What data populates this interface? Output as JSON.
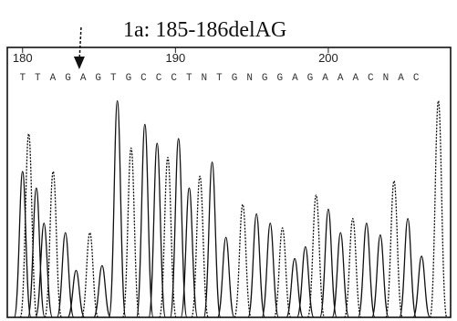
{
  "chart_data": {
    "type": "line",
    "title": "1a: 185-186delAG",
    "x_axis": {
      "ticks": [
        {
          "value": 180,
          "label": "180"
        },
        {
          "value": 190,
          "label": "190"
        },
        {
          "value": 200,
          "label": "200"
        }
      ],
      "range": [
        179,
        208
      ]
    },
    "mutation_marker": {
      "position": 185.5
    },
    "base_calls": [
      "T",
      "T",
      "A",
      "G",
      "A",
      "G",
      "T",
      "G",
      "C",
      "C",
      "C",
      "T",
      "N",
      "T",
      "G",
      "N",
      "G",
      "G",
      "A",
      "G",
      "A",
      "A",
      "A",
      "C",
      "N",
      "A",
      "C"
    ],
    "base_calls_start": 180,
    "peaks": [
      {
        "x": 180.0,
        "h": 0.62
      },
      {
        "x": 180.4,
        "h": 0.78
      },
      {
        "x": 180.9,
        "h": 0.55
      },
      {
        "x": 181.4,
        "h": 0.4
      },
      {
        "x": 182.0,
        "h": 0.62
      },
      {
        "x": 182.8,
        "h": 0.36
      },
      {
        "x": 183.5,
        "h": 0.2
      },
      {
        "x": 184.4,
        "h": 0.36
      },
      {
        "x": 185.2,
        "h": 0.22
      },
      {
        "x": 186.2,
        "h": 0.92
      },
      {
        "x": 187.1,
        "h": 0.72
      },
      {
        "x": 188.0,
        "h": 0.82
      },
      {
        "x": 188.8,
        "h": 0.74
      },
      {
        "x": 189.5,
        "h": 0.68
      },
      {
        "x": 190.2,
        "h": 0.76
      },
      {
        "x": 190.9,
        "h": 0.55
      },
      {
        "x": 191.6,
        "h": 0.6
      },
      {
        "x": 192.4,
        "h": 0.66
      },
      {
        "x": 193.3,
        "h": 0.34
      },
      {
        "x": 194.4,
        "h": 0.48
      },
      {
        "x": 195.3,
        "h": 0.44
      },
      {
        "x": 196.2,
        "h": 0.4
      },
      {
        "x": 197.0,
        "h": 0.38
      },
      {
        "x": 197.8,
        "h": 0.25
      },
      {
        "x": 198.5,
        "h": 0.3
      },
      {
        "x": 199.2,
        "h": 0.52
      },
      {
        "x": 200.0,
        "h": 0.46
      },
      {
        "x": 200.8,
        "h": 0.36
      },
      {
        "x": 201.6,
        "h": 0.42
      },
      {
        "x": 202.5,
        "h": 0.4
      },
      {
        "x": 203.4,
        "h": 0.35
      },
      {
        "x": 204.3,
        "h": 0.58
      },
      {
        "x": 205.2,
        "h": 0.42
      },
      {
        "x": 206.1,
        "h": 0.26
      },
      {
        "x": 207.2,
        "h": 0.92
      }
    ]
  }
}
